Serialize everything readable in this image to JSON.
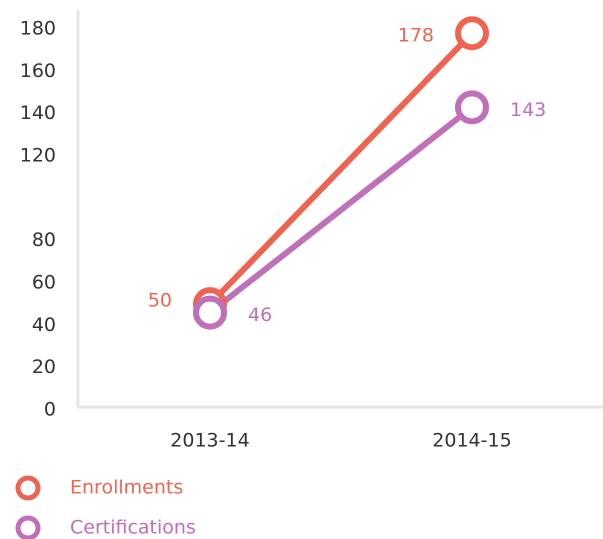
{
  "chart_data": {
    "type": "line",
    "categories": [
      "2013-14",
      "2014-15"
    ],
    "series": [
      {
        "name": "Enrollments",
        "color": "#ef6450",
        "values": [
          50,
          178
        ]
      },
      {
        "name": "Certifications",
        "color": "#c06fb9",
        "values": [
          46,
          143
        ]
      }
    ],
    "ylim": [
      0,
      180
    ],
    "yticks": [
      0,
      20,
      40,
      60,
      80,
      120,
      140,
      160,
      180
    ],
    "grid": false,
    "legend": "bottom-left"
  }
}
